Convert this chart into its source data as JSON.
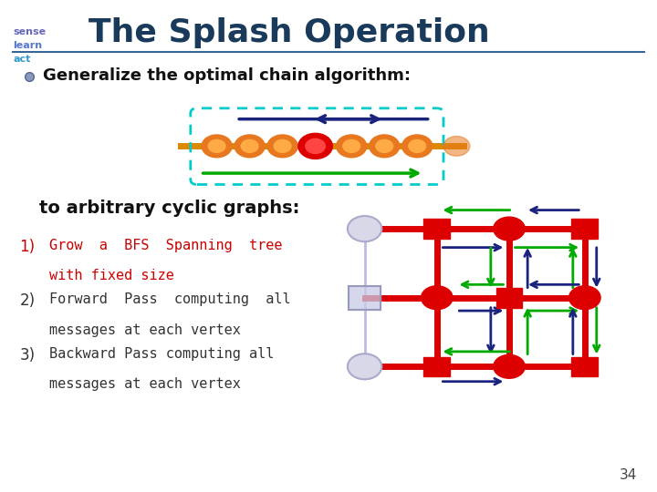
{
  "title": "The Splash Operation",
  "title_color": "#1a3a5c",
  "bullet_text": "Generalize the optimal chain algorithm:",
  "subtext": "to arbitrary cyclic graphs:",
  "items": [
    {
      "num": "1)",
      "text1": "Grow  a  BFS  Spanning  tree",
      "text2": "with fixed size",
      "color": "#cc0000"
    },
    {
      "num": "2)",
      "text1": "Forward  Pass  computing  all",
      "text2": "messages at each vertex",
      "color": "#333333"
    },
    {
      "num": "3)",
      "text1": "Backward Pass computing all",
      "text2": "messages at each vertex",
      "color": "#333333"
    }
  ],
  "page_num": "34",
  "bg_color": "#ffffff",
  "header_line_color": "#336699",
  "red_color": "#dd0000",
  "navy_color": "#1a237e",
  "green_color": "#00aa00",
  "orange_color": "#e87820",
  "cyan_color": "#00cccc",
  "ghost_color": "#c8cce8",
  "ghost_edge": "#9999bb"
}
